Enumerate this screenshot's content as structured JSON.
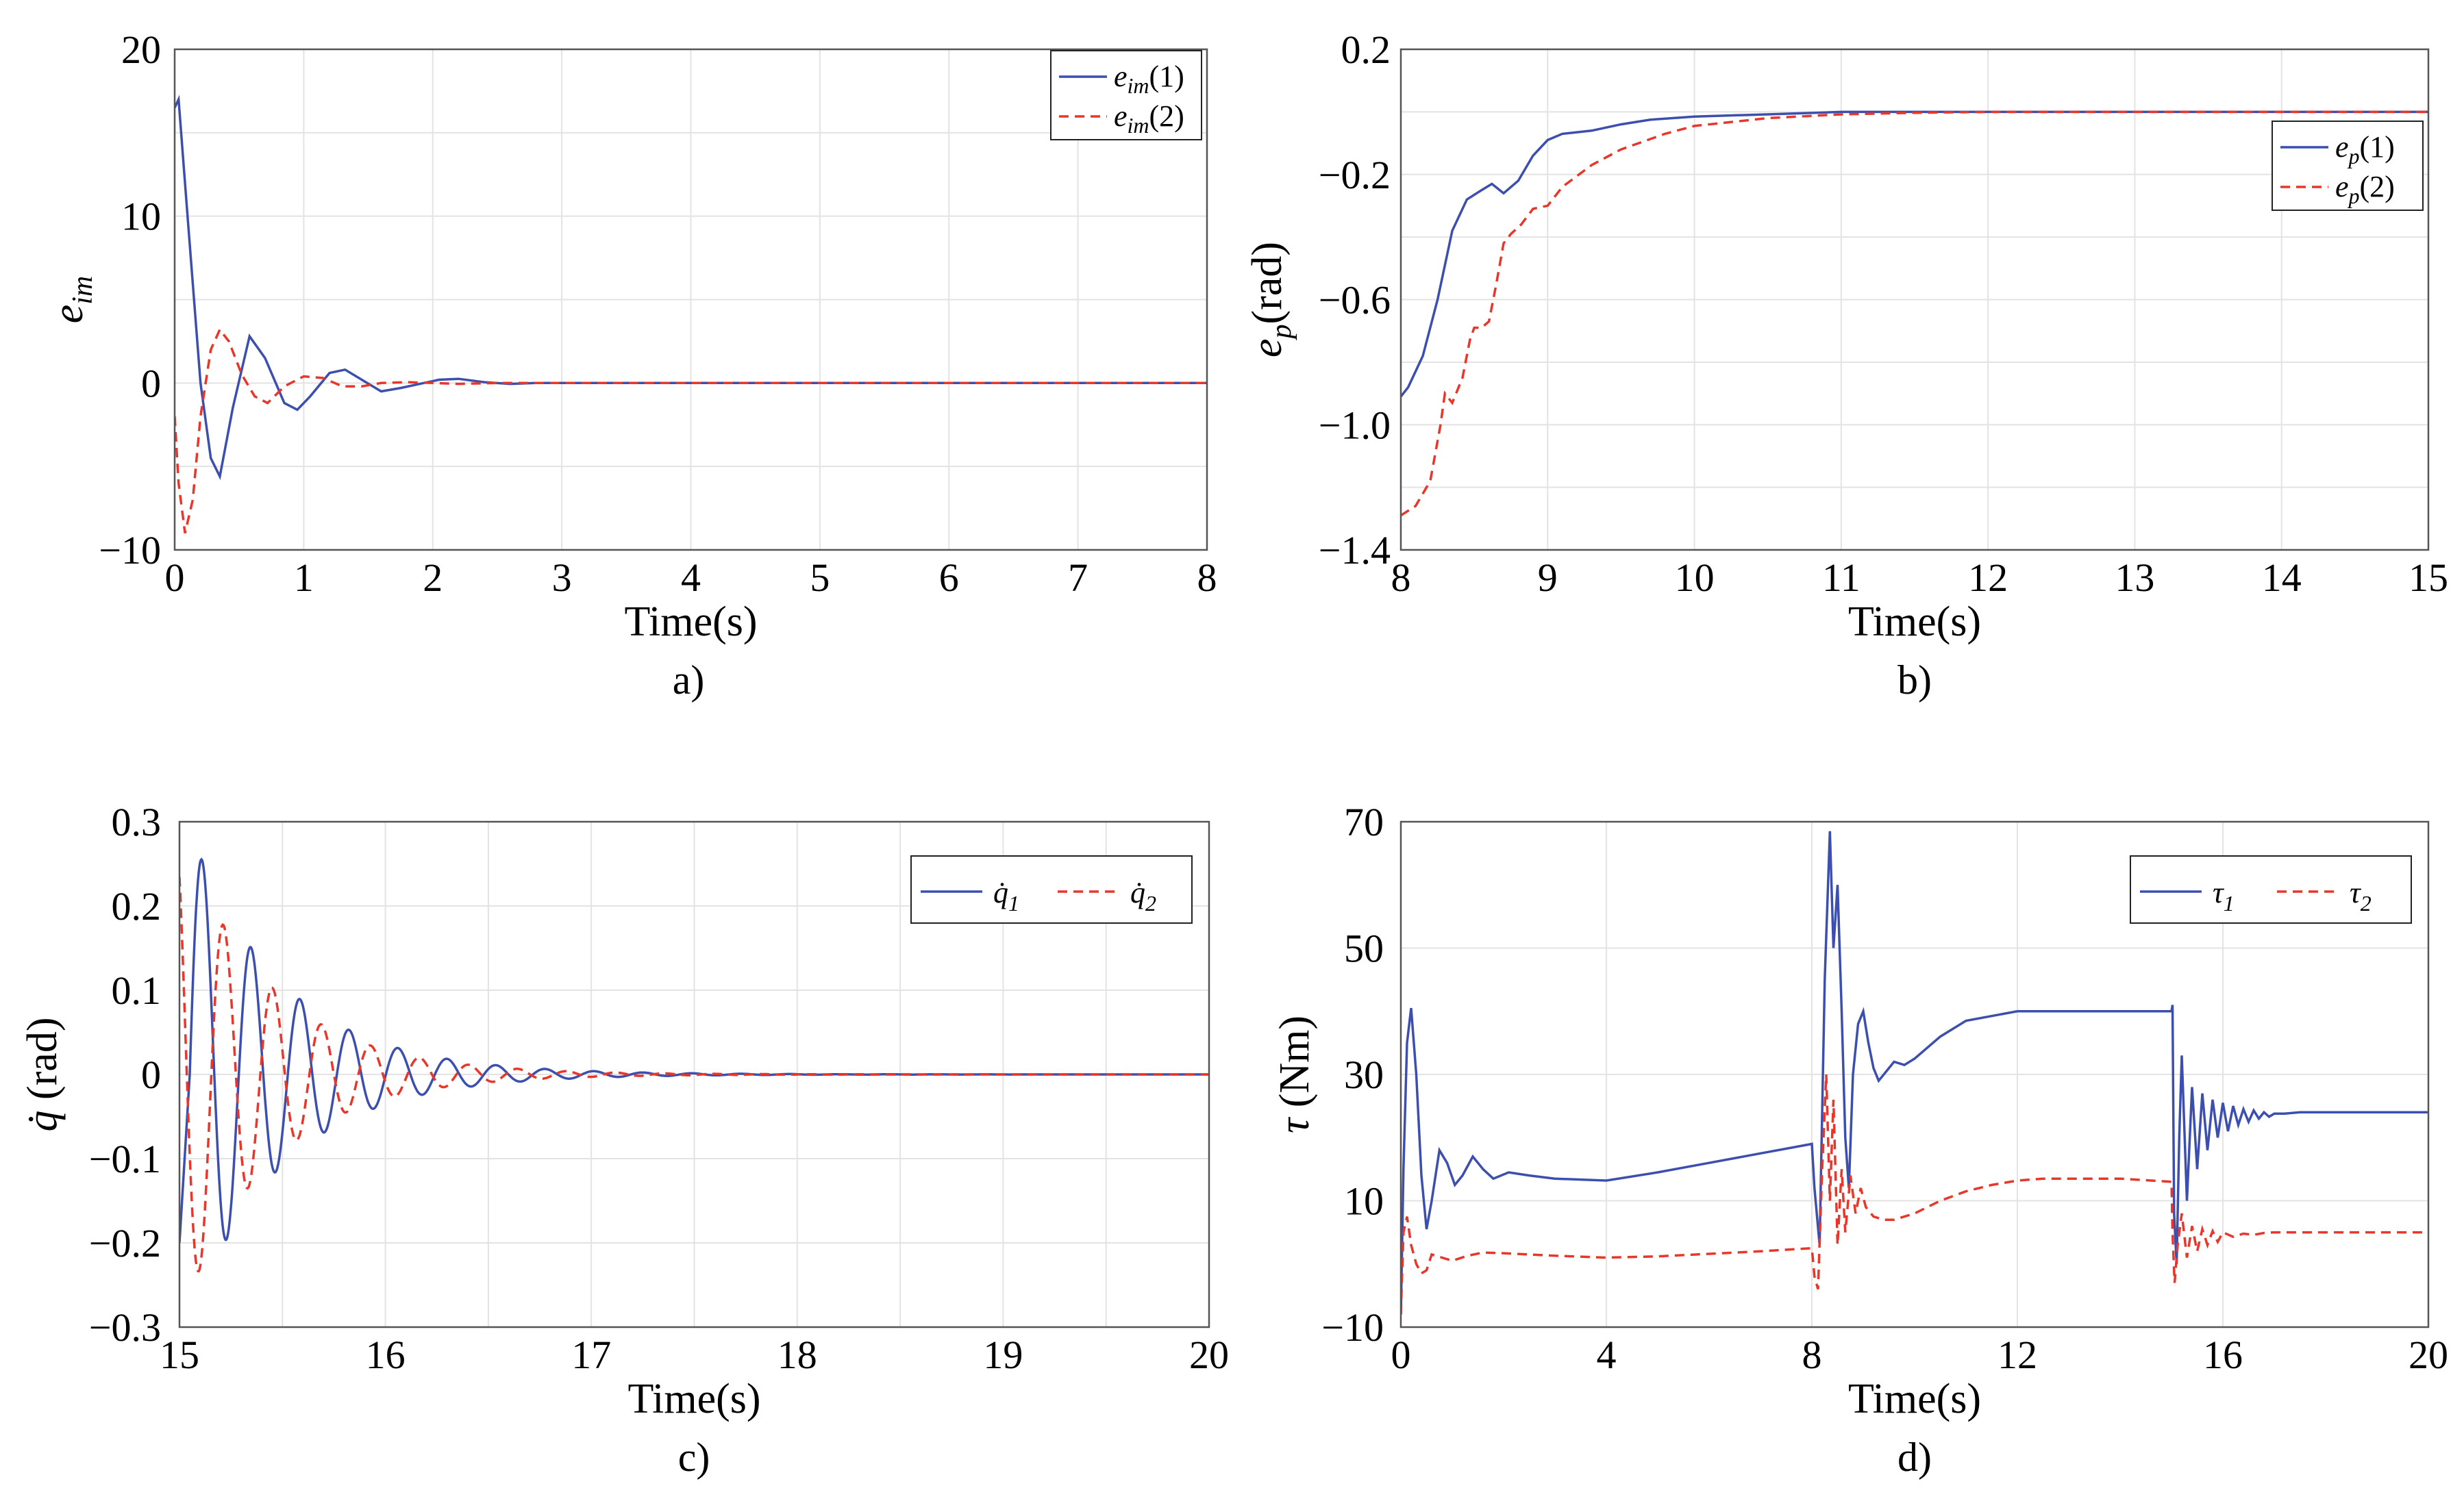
{
  "chart_data": [
    {
      "id": "a",
      "type": "line",
      "caption": "a)",
      "xlabel": "Time(s)",
      "ylabel": "e",
      "ylabel_sub": "im",
      "xlim": [
        0,
        8
      ],
      "ylim": [
        -10,
        20
      ],
      "xticks": [
        "0",
        "1",
        "2",
        "3",
        "4",
        "5",
        "6",
        "7",
        "8"
      ],
      "yticks": [
        "20",
        "10",
        "0",
        "−10"
      ],
      "legend": [
        {
          "base": "e",
          "sub": "im",
          "suffix": "(1)"
        },
        {
          "base": "e",
          "sub": "im",
          "suffix": "(2)"
        }
      ],
      "legend_position": "top-right",
      "series": [
        {
          "name": "e_im(1)",
          "x": [
            0,
            0.03,
            0.1,
            0.2,
            0.28,
            0.35,
            0.45,
            0.58,
            0.7,
            0.85,
            0.95,
            1.05,
            1.2,
            1.32,
            1.45,
            1.6,
            1.75,
            1.9,
            2.05,
            2.2,
            2.4,
            2.6,
            2.8,
            3.0,
            3.5,
            4,
            5,
            6,
            7,
            8
          ],
          "y": [
            16.5,
            17,
            10,
            0,
            -4.5,
            -5.6,
            -1.5,
            2.8,
            1.5,
            -1.2,
            -1.6,
            -0.8,
            0.6,
            0.8,
            0.2,
            -0.5,
            -0.3,
            -0.05,
            0.2,
            0.25,
            0.05,
            -0.05,
            0,
            0,
            0,
            0,
            0,
            0,
            0,
            0
          ]
        },
        {
          "name": "e_im(2)",
          "x": [
            0,
            0.03,
            0.08,
            0.14,
            0.2,
            0.28,
            0.35,
            0.42,
            0.52,
            0.62,
            0.72,
            0.85,
            1.0,
            1.15,
            1.3,
            1.45,
            1.6,
            1.8,
            2.0,
            2.2,
            2.5,
            3,
            3.5,
            4,
            5,
            6,
            7,
            8
          ],
          "y": [
            -2,
            -6,
            -9,
            -7,
            -2,
            2,
            3.2,
            2.5,
            0.5,
            -0.8,
            -1.2,
            -0.2,
            0.4,
            0.3,
            -0.2,
            -0.2,
            0,
            0.05,
            0,
            -0.05,
            0,
            0,
            0,
            0,
            0,
            0,
            0,
            0
          ]
        }
      ]
    },
    {
      "id": "b",
      "type": "line",
      "caption": "b)",
      "xlabel": "Time(s)",
      "ylabel": "e",
      "ylabel_sub": "p",
      "ylabel_suffix": "(rad)",
      "xlim": [
        8,
        15
      ],
      "ylim": [
        -1.4,
        0.2
      ],
      "xticks": [
        "8",
        "9",
        "10",
        "11",
        "12",
        "13",
        "14",
        "15"
      ],
      "yticks": [
        "0.2",
        "−0.2",
        "−0.6",
        "−1.0",
        "−1.4"
      ],
      "legend": [
        {
          "base": "e",
          "sub": "p",
          "suffix": "(1)"
        },
        {
          "base": "e",
          "sub": "p",
          "suffix": "(2)"
        }
      ],
      "legend_position": "top-right",
      "series": [
        {
          "name": "e_p(1)",
          "x": [
            8,
            8.05,
            8.15,
            8.25,
            8.35,
            8.45,
            8.55,
            8.62,
            8.7,
            8.8,
            8.9,
            9.0,
            9.1,
            9.2,
            9.3,
            9.5,
            9.7,
            10,
            10.5,
            11,
            12,
            13,
            14,
            15
          ],
          "y": [
            -0.91,
            -0.88,
            -0.78,
            -0.6,
            -0.38,
            -0.28,
            -0.25,
            -0.23,
            -0.26,
            -0.22,
            -0.14,
            -0.09,
            -0.07,
            -0.065,
            -0.06,
            -0.04,
            -0.025,
            -0.015,
            -0.008,
            0,
            0,
            0,
            0,
            0
          ]
        },
        {
          "name": "e_p(2)",
          "x": [
            8,
            8.1,
            8.2,
            8.27,
            8.3,
            8.35,
            8.42,
            8.47,
            8.5,
            8.55,
            8.6,
            8.65,
            8.7,
            8.75,
            8.82,
            8.9,
            9.0,
            9.1,
            9.3,
            9.5,
            9.8,
            10,
            10.5,
            11,
            11.5,
            12,
            13,
            14,
            15
          ],
          "y": [
            -1.29,
            -1.26,
            -1.18,
            -1.0,
            -0.9,
            -0.93,
            -0.85,
            -0.73,
            -0.69,
            -0.69,
            -0.67,
            -0.55,
            -0.42,
            -0.39,
            -0.36,
            -0.31,
            -0.3,
            -0.24,
            -0.17,
            -0.12,
            -0.07,
            -0.045,
            -0.02,
            -0.008,
            -0.003,
            0,
            0,
            0,
            0
          ]
        }
      ]
    },
    {
      "id": "c",
      "type": "line",
      "caption": "c)",
      "xlabel": "Time(s)",
      "ylabel": "q̇",
      "ylabel_suffix": " (rad)",
      "xlim": [
        15,
        20
      ],
      "ylim": [
        -0.3,
        0.3
      ],
      "xticks": [
        "15",
        "16",
        "17",
        "18",
        "19",
        "20"
      ],
      "yticks": [
        "0.3",
        "0.2",
        "0.1",
        "0",
        "−0.1",
        "−0.2",
        "−0.3"
      ],
      "legend": [
        {
          "base": "q̇",
          "sub": "1",
          "suffix": ""
        },
        {
          "base": "q̇",
          "sub": "2",
          "suffix": ""
        }
      ],
      "legend_position": "top-right",
      "series": [
        {
          "name": "q̇1",
          "amplitude": 0.29,
          "decay": 2.2,
          "frequency_hz": 4.2,
          "phase": 0.0,
          "start": 15.05
        },
        {
          "name": "q̇2",
          "amplitude": 0.29,
          "decay": 2.3,
          "frequency_hz": 4.2,
          "phase": 2.2,
          "start": 15.0
        }
      ]
    },
    {
      "id": "d",
      "type": "line",
      "caption": "d)",
      "xlabel": "Time(s)",
      "ylabel": "τ",
      "ylabel_suffix": " (Nm)",
      "xlim": [
        0,
        20
      ],
      "ylim": [
        -10,
        70
      ],
      "xticks": [
        "0",
        "4",
        "8",
        "12",
        "16",
        "20"
      ],
      "yticks": [
        "70",
        "50",
        "30",
        "10",
        "−10"
      ],
      "legend": [
        {
          "base": "τ",
          "sub": "1",
          "suffix": ""
        },
        {
          "base": "τ",
          "sub": "2",
          "suffix": ""
        }
      ],
      "legend_position": "top-right",
      "series": [
        {
          "name": "τ1",
          "x": [
            0,
            0.05,
            0.12,
            0.2,
            0.3,
            0.4,
            0.5,
            0.6,
            0.75,
            0.9,
            1.05,
            1.2,
            1.4,
            1.6,
            1.8,
            2.1,
            2.5,
            3,
            4,
            5,
            6,
            7,
            8,
            8.05,
            8.15,
            8.25,
            8.35,
            8.42,
            8.5,
            8.58,
            8.65,
            8.72,
            8.8,
            8.9,
            9.0,
            9.1,
            9.2,
            9.3,
            9.45,
            9.6,
            9.8,
            10,
            10.5,
            11,
            12,
            13,
            14,
            15,
            15.02,
            15.05,
            15.1,
            15.15,
            15.2,
            15.3,
            15.4,
            15.5,
            15.6,
            15.7,
            15.8,
            15.9,
            16.0,
            16.1,
            16.2,
            16.3,
            16.4,
            16.5,
            16.6,
            16.7,
            16.8,
            16.9,
            17,
            17.2,
            17.5,
            18,
            19,
            20
          ],
          "y": [
            -8,
            15,
            35,
            40.5,
            30,
            14,
            5.5,
            10,
            18,
            16,
            12.5,
            14,
            17,
            15,
            13.5,
            14.5,
            14,
            13.5,
            13.2,
            14.5,
            16,
            17.5,
            19,
            12,
            3,
            45,
            68.5,
            50,
            60,
            40,
            20,
            12,
            30,
            38,
            40,
            35,
            31,
            29,
            30.5,
            32,
            31.5,
            32.5,
            36,
            38.5,
            40,
            40,
            40,
            40,
            41,
            8,
            0,
            20,
            33,
            10,
            28,
            15,
            27,
            18,
            26,
            20,
            25.5,
            21,
            25,
            22,
            24.5,
            22.5,
            24.3,
            23,
            24,
            23.3,
            23.8,
            23.8,
            24,
            24,
            24,
            24
          ]
        },
        {
          "name": "τ2",
          "x": [
            0,
            0.05,
            0.12,
            0.2,
            0.3,
            0.4,
            0.5,
            0.6,
            0.8,
            1.0,
            1.3,
            1.6,
            2,
            3,
            4,
            5,
            6,
            7,
            8,
            8.05,
            8.12,
            8.2,
            8.28,
            8.35,
            8.42,
            8.5,
            8.58,
            8.65,
            8.75,
            8.85,
            8.95,
            9.05,
            9.2,
            9.4,
            9.6,
            9.8,
            10,
            10.5,
            11,
            11.5,
            12,
            12.5,
            13,
            14,
            15,
            15.02,
            15.06,
            15.12,
            15.2,
            15.3,
            15.4,
            15.5,
            15.6,
            15.7,
            15.8,
            15.9,
            16.0,
            16.2,
            16.4,
            16.6,
            16.8,
            17,
            17.5,
            18,
            19,
            20
          ],
          "y": [
            -8,
            5,
            7.5,
            3,
            0,
            -1.5,
            -1,
            1.5,
            1,
            0.5,
            1.3,
            1.8,
            1.7,
            1.3,
            1,
            1.2,
            1.6,
            2,
            2.5,
            -2,
            -4,
            15,
            30,
            10,
            26,
            3,
            15,
            5,
            14,
            8,
            12,
            9,
            7.5,
            7,
            7,
            7.5,
            8,
            10,
            11.5,
            12.5,
            13.2,
            13.5,
            13.5,
            13.5,
            13,
            5,
            -3,
            3,
            8,
            1,
            6,
            2,
            5.5,
            3,
            5.2,
            3.5,
            5,
            4.3,
            4.8,
            4.6,
            4.9,
            5,
            5,
            5,
            5,
            5
          ]
        }
      ]
    }
  ]
}
